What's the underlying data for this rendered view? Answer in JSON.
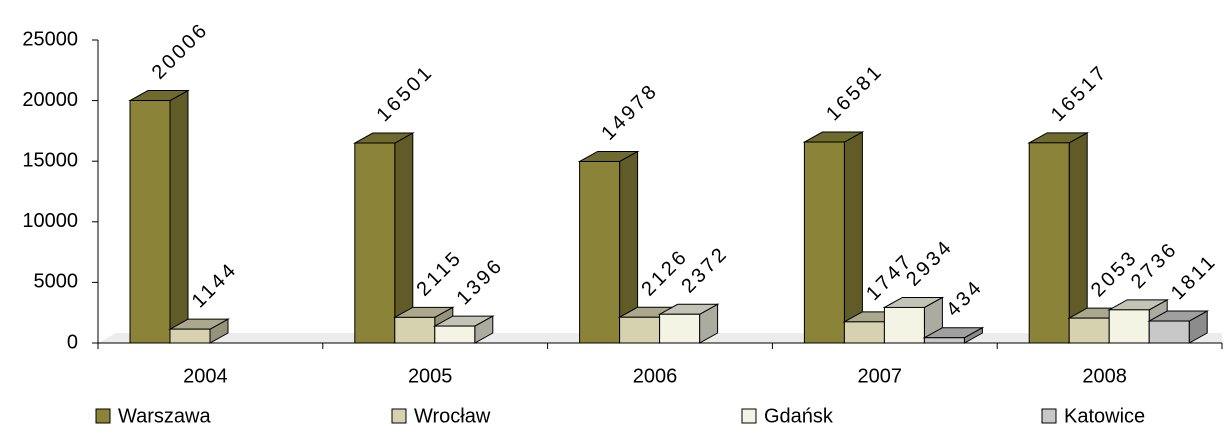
{
  "chart_data": {
    "type": "bar3d",
    "categories": [
      "2004",
      "2005",
      "2006",
      "2007",
      "2008"
    ],
    "series": [
      {
        "name": "Warszawa",
        "color": "#8b8438",
        "values": [
          20006,
          16501,
          14978,
          16581,
          16517
        ]
      },
      {
        "name": "Wrocław",
        "color": "#d6d2b0",
        "values": [
          1144,
          2115,
          2126,
          1747,
          2053
        ]
      },
      {
        "name": "Gdańsk",
        "color": "#f4f4e4",
        "values": [
          null,
          1396,
          2372,
          2934,
          2736
        ]
      },
      {
        "name": "Katowice",
        "color": "#c8c8c8",
        "values": [
          null,
          null,
          null,
          434,
          1811
        ]
      }
    ],
    "ylim": [
      0,
      25000
    ],
    "yticks": [
      0,
      5000,
      10000,
      15000,
      20000,
      25000
    ],
    "legend": "bottom"
  }
}
